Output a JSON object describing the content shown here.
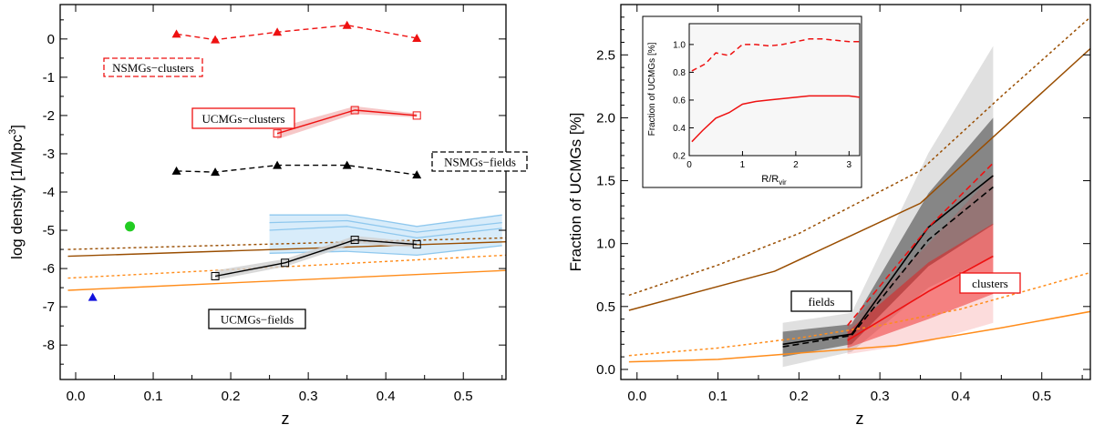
{
  "chart_data": [
    {
      "type": "line",
      "xlabel": "z",
      "ylabel": "log density [1/Mpc",
      "ylabel_sup": "3",
      "ylabel_tail": "]",
      "xlim": [
        -0.02,
        0.555
      ],
      "ylim": [
        -8.9,
        0.9
      ],
      "xticks": [
        "0.0",
        "0.1",
        "0.2",
        "0.3",
        "0.4",
        "0.5"
      ],
      "yticks": [
        "0",
        "-1",
        "-2",
        "-3",
        "-4",
        "-5",
        "-6",
        "-7",
        "-8"
      ],
      "labels": {
        "nsmg_clusters": "NSMGs−clusters",
        "ucmg_clusters": "UCMGs−clusters",
        "nsmg_fields": "NSMGs−fields",
        "ucmg_fields": "UCMGs−fields"
      },
      "colors": {
        "red": "#ee1111",
        "black": "#000000",
        "brown": "#994d00",
        "orange": "#ff8c1a",
        "lightblue": "#8fc8ee",
        "green": "#22cc22",
        "blue": "#1111dd"
      },
      "series": [
        {
          "name": "NSMGs-clusters",
          "x": [
            0.13,
            0.18,
            0.26,
            0.35,
            0.44
          ],
          "y": [
            0.13,
            -0.02,
            0.18,
            0.36,
            0.02
          ]
        },
        {
          "name": "UCMGs-clusters",
          "x": [
            0.26,
            0.36,
            0.44
          ],
          "y": [
            -2.47,
            -1.86,
            -2.0
          ],
          "lo": [
            -2.62,
            -1.96,
            -2.05
          ],
          "hi": [
            -2.32,
            -1.76,
            -1.95
          ]
        },
        {
          "name": "NSMGs-fields",
          "x": [
            0.13,
            0.18,
            0.26,
            0.35,
            0.44
          ],
          "y": [
            -3.45,
            -3.48,
            -3.3,
            -3.3,
            -3.55
          ]
        },
        {
          "name": "UCMGs-fields",
          "x": [
            0.18,
            0.27,
            0.36,
            0.44
          ],
          "y": [
            -6.2,
            -5.85,
            -5.25,
            -5.37
          ],
          "lo": [
            -6.3,
            -5.95,
            -5.35,
            -5.45
          ],
          "hi": [
            -6.05,
            -5.75,
            -5.15,
            -5.3
          ]
        },
        {
          "name": "lightblue-model",
          "x": [
            0.25,
            0.35,
            0.44,
            0.55
          ],
          "y": [
            -5.35,
            -5.2,
            -5.5,
            -5.05
          ],
          "lo": [
            -5.6,
            -5.55,
            -5.65,
            -5.4
          ],
          "hi": [
            -4.6,
            -4.6,
            -4.9,
            -4.6
          ],
          "inner_lo": [
            -5.0,
            -4.9,
            -5.2,
            -4.95
          ],
          "inner_hi": [
            -4.8,
            -4.75,
            -5.05,
            -4.8
          ]
        },
        {
          "name": "brown-solid",
          "x": [
            -0.01,
            0.555
          ],
          "y": [
            -5.68,
            -5.3
          ]
        },
        {
          "name": "brown-dotted",
          "x": [
            -0.01,
            0.555
          ],
          "y": [
            -5.5,
            -5.2
          ]
        },
        {
          "name": "orange-solid",
          "x": [
            -0.01,
            0.555
          ],
          "y": [
            -6.57,
            -6.05
          ]
        },
        {
          "name": "orange-dotted",
          "x": [
            -0.01,
            0.555
          ],
          "y": [
            -6.25,
            -5.65
          ]
        }
      ],
      "points": [
        {
          "name": "green-point",
          "x": 0.07,
          "y": -4.9
        },
        {
          "name": "blue-point",
          "x": 0.022,
          "y": -6.75
        }
      ]
    },
    {
      "type": "line",
      "xlabel": "z",
      "ylabel": "Fraction of UCMGs [%]",
      "xlim": [
        -0.02,
        0.56
      ],
      "ylim": [
        -0.08,
        2.9
      ],
      "xticks": [
        "0.0",
        "0.1",
        "0.2",
        "0.3",
        "0.4",
        "0.5"
      ],
      "yticks": [
        "0.0",
        "0.5",
        "1.0",
        "1.5",
        "2.0",
        "2.5"
      ],
      "labels": {
        "fields": "fields",
        "clusters": "clusters"
      },
      "series": [
        {
          "name": "brown-dotted",
          "x": [
            -0.01,
            0.1,
            0.2,
            0.35,
            0.45,
            0.56
          ],
          "y": [
            0.59,
            0.83,
            1.08,
            1.58,
            2.17,
            2.8
          ]
        },
        {
          "name": "brown-solid",
          "x": [
            -0.01,
            0.17,
            0.35,
            0.56
          ],
          "y": [
            0.47,
            0.78,
            1.32,
            2.55
          ]
        },
        {
          "name": "orange-dotted",
          "x": [
            -0.01,
            0.1,
            0.2,
            0.3,
            0.4,
            0.5,
            0.56
          ],
          "y": [
            0.11,
            0.17,
            0.25,
            0.35,
            0.48,
            0.66,
            0.77
          ]
        },
        {
          "name": "orange-solid",
          "x": [
            -0.01,
            0.1,
            0.2,
            0.32,
            0.45,
            0.56
          ],
          "y": [
            0.06,
            0.08,
            0.13,
            0.19,
            0.33,
            0.46
          ]
        },
        {
          "name": "fields-solid",
          "x": [
            0.18,
            0.265,
            0.36,
            0.44
          ],
          "y": [
            0.2,
            0.28,
            1.13,
            1.54
          ],
          "band_lo": [
            0.1,
            0.2,
            0.82,
            1.15
          ],
          "band_hi": [
            0.3,
            0.36,
            1.4,
            2.0
          ],
          "wide_lo": [
            0.02,
            0.14,
            0.65,
            0.9
          ],
          "wide_hi": [
            0.37,
            0.45,
            1.72,
            2.57
          ]
        },
        {
          "name": "fields-dashed",
          "x": [
            0.18,
            0.265,
            0.36,
            0.44
          ],
          "y": [
            0.18,
            0.27,
            1.03,
            1.45
          ]
        },
        {
          "name": "clusters-solid",
          "x": [
            0.26,
            0.36,
            0.44
          ],
          "y": [
            0.23,
            0.62,
            0.9
          ],
          "band_lo": [
            0.17,
            0.4,
            0.6
          ],
          "band_hi": [
            0.3,
            0.85,
            1.16
          ],
          "wide_lo": [
            0.12,
            0.22,
            0.37
          ],
          "wide_hi": [
            0.34,
            1.0,
            1.55
          ]
        },
        {
          "name": "clusters-dashed",
          "x": [
            0.26,
            0.36,
            0.44
          ],
          "y": [
            0.35,
            1.13,
            1.64
          ]
        }
      ],
      "inset": {
        "xlabel": "R/R",
        "xlabel_sub": "vir",
        "ylabel": "Fraction of UCMGs [%]",
        "xlim": [
          0,
          3.2
        ],
        "ylim": [
          0.2,
          1.15
        ],
        "xticks": [
          "0",
          "1",
          "2",
          "3"
        ],
        "yticks": [
          "0.2",
          "0.4",
          "0.6",
          "0.8",
          "1.0"
        ],
        "series": [
          {
            "name": "inset-dashed",
            "x": [
              0.05,
              0.3,
              0.5,
              0.75,
              1.0,
              1.25,
              1.5,
              1.75,
              2.0,
              2.25,
              2.5,
              2.75,
              3.0,
              3.2
            ],
            "y": [
              0.81,
              0.86,
              0.94,
              0.92,
              1.0,
              1.0,
              0.99,
              1.0,
              1.02,
              1.04,
              1.04,
              1.03,
              1.02,
              1.02
            ]
          },
          {
            "name": "inset-solid",
            "x": [
              0.05,
              0.25,
              0.5,
              0.75,
              1.0,
              1.25,
              1.5,
              1.75,
              2.0,
              2.25,
              2.5,
              2.75,
              3.0,
              3.2
            ],
            "y": [
              0.3,
              0.38,
              0.47,
              0.51,
              0.57,
              0.59,
              0.6,
              0.61,
              0.62,
              0.63,
              0.63,
              0.63,
              0.63,
              0.62
            ]
          }
        ]
      }
    }
  ]
}
